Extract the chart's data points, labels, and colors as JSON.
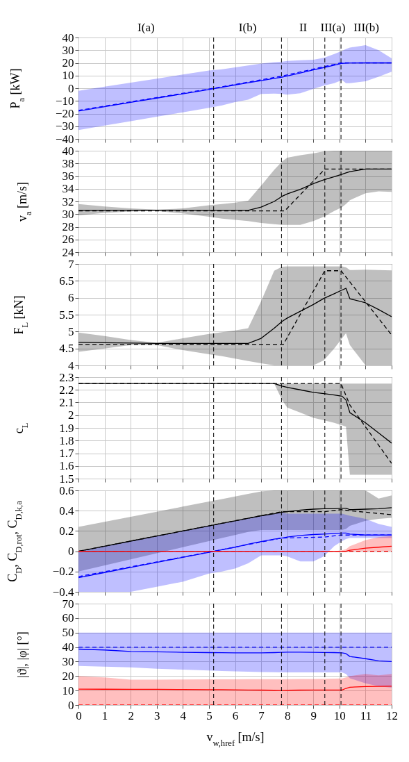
{
  "chart_data": [
    {
      "type": "line",
      "ylabel": "P$_{a}$ [kW]",
      "xlim": [
        0,
        12
      ],
      "xticks": [
        0,
        1,
        2,
        3,
        4,
        5,
        6,
        7,
        8,
        9,
        10,
        11,
        12
      ],
      "ylim": [
        -40,
        40
      ],
      "yticks": [
        -40,
        -30,
        -20,
        -10,
        0,
        10,
        20,
        30,
        40
      ],
      "grid": true,
      "tick_labels": "y",
      "x": [
        0,
        1,
        2,
        3,
        4,
        5,
        5.5,
        6,
        6.5,
        7,
        7.5,
        7.8,
        8,
        8.5,
        9,
        9.4,
        9.8,
        10.1,
        10.25,
        10.4,
        11,
        11.5,
        12
      ],
      "annotations": [
        "I(a)",
        "I(b)",
        "II",
        "III(a)",
        "III(b)"
      ],
      "ref_lines": [
        {
          "axis": "x",
          "value": 5.18,
          "line_style": "dashed",
          "color": "#000000"
        },
        {
          "axis": "x",
          "value": 7.78,
          "line_style": "dashed",
          "color": "#000000"
        },
        {
          "axis": "x",
          "value": 9.44,
          "line_style": "dashed",
          "color": "#000000"
        },
        {
          "axis": "x",
          "value": 10.06,
          "line_style": "dashed",
          "color": "#000000"
        }
      ],
      "series": [
        {
          "color": "#0000ff",
          "line_style": "solid",
          "values": [
            -18,
            -14.6,
            -11.2,
            -7.8,
            -4.4,
            -1,
            0.8,
            2.6,
            4.3,
            6,
            7.7,
            8.7,
            9.7,
            12,
            14.4,
            16.3,
            18.2,
            19.6,
            19.8,
            19.9,
            20,
            20,
            20
          ],
          "upper": [
            -2,
            1.2,
            4.4,
            7.6,
            10.8,
            14,
            15,
            16.5,
            18,
            19.5,
            20.5,
            21,
            21.5,
            22,
            22.5,
            24,
            27,
            29.5,
            31,
            32,
            34,
            30,
            23.5
          ],
          "lower": [
            -33,
            -29.5,
            -26,
            -22.5,
            -19,
            -15.5,
            -13.5,
            -11,
            -9,
            -4.5,
            -4.2,
            -4.5,
            -5,
            -4,
            -0.5,
            2,
            4,
            6.5,
            4,
            4,
            5.5,
            9,
            13
          ]
        },
        {
          "color": "#0000ff",
          "line_style": "dashed",
          "x": [
            0,
            5.18,
            7.78,
            10.06,
            12
          ],
          "values": [
            -17.5,
            0,
            9.5,
            20,
            20
          ]
        }
      ]
    },
    {
      "type": "line",
      "ylabel": "v$_{a}$ [m/s]",
      "xlim": [
        0,
        12
      ],
      "xticks": [
        0,
        1,
        2,
        3,
        4,
        5,
        6,
        7,
        8,
        9,
        10,
        11,
        12
      ],
      "ylim": [
        24,
        40
      ],
      "yticks": [
        24,
        26,
        28,
        30,
        32,
        34,
        36,
        38,
        40
      ],
      "grid": true,
      "tick_labels": "y",
      "x": [
        0,
        1,
        2,
        3,
        4,
        5,
        5.5,
        6,
        6.5,
        7,
        7.5,
        7.8,
        8,
        8.5,
        9,
        9.4,
        9.8,
        10.1,
        10.25,
        10.4,
        11,
        11.5,
        12
      ],
      "ref_lines": [
        {
          "axis": "x",
          "value": 5.18,
          "line_style": "dashed",
          "color": "#000000"
        },
        {
          "axis": "x",
          "value": 7.78,
          "line_style": "dashed",
          "color": "#000000"
        },
        {
          "axis": "x",
          "value": 9.44,
          "line_style": "dashed",
          "color": "#000000"
        },
        {
          "axis": "x",
          "value": 10.06,
          "line_style": "dashed",
          "color": "#000000"
        }
      ],
      "series": [
        {
          "color": "#000000",
          "line_style": "solid",
          "values": [
            30.6,
            30.6,
            30.6,
            30.6,
            30.6,
            30.6,
            30.6,
            30.6,
            30.6,
            31.1,
            32,
            32.8,
            33.2,
            33.9,
            34.8,
            35.4,
            35.9,
            36.3,
            36.5,
            36.7,
            37.1,
            37.1,
            37.1
          ],
          "upper": [
            31.6,
            31.2,
            30.9,
            30.7,
            30.9,
            31.4,
            31.6,
            31.8,
            32.1,
            34.5,
            37,
            38.3,
            38.9,
            39.3,
            39.6,
            39.9,
            40,
            40,
            40,
            40,
            40,
            40,
            40
          ],
          "lower": [
            29.8,
            30.2,
            30.4,
            30.5,
            30.1,
            29.6,
            29.3,
            29.1,
            28.9,
            28.6,
            28.4,
            28.3,
            28.3,
            28.3,
            28.9,
            29.6,
            30.5,
            31.1,
            31.6,
            32.2,
            33.3,
            33.6,
            33.5
          ]
        },
        {
          "color": "#000000",
          "line_style": "dashed",
          "x": [
            0,
            7.9,
            9.44,
            12
          ],
          "values": [
            30.5,
            30.5,
            37.1,
            37.1
          ]
        }
      ]
    },
    {
      "type": "line",
      "ylabel": "F$_{L}$ [kN]",
      "xlim": [
        0,
        12
      ],
      "xticks": [
        0,
        1,
        2,
        3,
        4,
        5,
        6,
        7,
        8,
        9,
        10,
        11,
        12
      ],
      "ylim": [
        4,
        7
      ],
      "yticks": [
        4,
        4.5,
        5,
        5.5,
        6,
        6.5,
        7
      ],
      "grid": true,
      "tick_labels": "y",
      "x": [
        0,
        1,
        2,
        3,
        4,
        5,
        5.5,
        6,
        6.5,
        7,
        7.5,
        7.8,
        8,
        8.5,
        9,
        9.4,
        9.8,
        10.1,
        10.25,
        10.4,
        11,
        11.5,
        12
      ],
      "ref_lines": [
        {
          "axis": "x",
          "value": 5.18,
          "line_style": "dashed",
          "color": "#000000"
        },
        {
          "axis": "x",
          "value": 7.78,
          "line_style": "dashed",
          "color": "#000000"
        },
        {
          "axis": "x",
          "value": 9.44,
          "line_style": "dashed",
          "color": "#000000"
        },
        {
          "axis": "x",
          "value": 10.06,
          "line_style": "dashed",
          "color": "#000000"
        }
      ],
      "series": [
        {
          "color": "#000000",
          "line_style": "solid",
          "values": [
            4.68,
            4.67,
            4.66,
            4.65,
            4.65,
            4.65,
            4.65,
            4.65,
            4.65,
            4.8,
            5.1,
            5.3,
            5.4,
            5.6,
            5.8,
            5.98,
            6.12,
            6.23,
            6.28,
            5.97,
            5.85,
            5.65,
            5.44
          ],
          "upper": [
            4.97,
            4.87,
            4.75,
            4.67,
            4.8,
            4.93,
            4.98,
            5.03,
            5.1,
            5.9,
            6.8,
            6.92,
            6.93,
            6.93,
            6.93,
            6.93,
            6.93,
            6.93,
            6.9,
            6.82,
            6.83,
            6.82,
            6.81
          ],
          "lower": [
            4.4,
            4.5,
            4.6,
            4.6,
            4.45,
            4.33,
            4.27,
            4.2,
            4.13,
            4.06,
            4,
            4,
            4,
            4,
            4,
            4.15,
            4.5,
            4.8,
            4.95,
            4.6,
            4,
            4,
            4
          ]
        },
        {
          "color": "#000000",
          "line_style": "dashed",
          "x": [
            0,
            7.85,
            9.44,
            10.06,
            12
          ],
          "values": [
            4.62,
            4.62,
            6.8,
            6.8,
            4.9
          ]
        }
      ]
    },
    {
      "type": "line",
      "ylabel": "c$_{L}$",
      "xlim": [
        0,
        12
      ],
      "xticks": [
        0,
        1,
        2,
        3,
        4,
        5,
        6,
        7,
        8,
        9,
        10,
        11,
        12
      ],
      "ylim": [
        1.5,
        2.3
      ],
      "yticks": [
        1.5,
        1.6,
        1.7,
        1.8,
        1.9,
        2,
        2.1,
        2.2,
        2.3
      ],
      "grid": true,
      "tick_labels": "y",
      "x": [
        0,
        1,
        2,
        3,
        4,
        5,
        5.5,
        6,
        6.5,
        7,
        7.5,
        7.8,
        8,
        8.5,
        9,
        9.4,
        9.8,
        10.1,
        10.25,
        10.4,
        11,
        11.5,
        12
      ],
      "ref_lines": [
        {
          "axis": "x",
          "value": 5.18,
          "line_style": "dashed",
          "color": "#000000"
        },
        {
          "axis": "x",
          "value": 7.78,
          "line_style": "dashed",
          "color": "#000000"
        },
        {
          "axis": "x",
          "value": 9.44,
          "line_style": "dashed",
          "color": "#000000"
        },
        {
          "axis": "x",
          "value": 10.06,
          "line_style": "dashed",
          "color": "#000000"
        }
      ],
      "series": [
        {
          "color": "#000000",
          "line_style": "solid",
          "values": [
            2.25,
            2.25,
            2.25,
            2.25,
            2.25,
            2.25,
            2.25,
            2.25,
            2.25,
            2.25,
            2.25,
            2.23,
            2.22,
            2.2,
            2.18,
            2.17,
            2.16,
            2.15,
            2.12,
            2.02,
            1.94,
            1.86,
            1.78
          ],
          "upper": [
            2.25,
            2.25,
            2.25,
            2.25,
            2.25,
            2.25,
            2.25,
            2.25,
            2.25,
            2.25,
            2.25,
            2.25,
            2.25,
            2.25,
            2.25,
            2.25,
            2.25,
            2.25,
            2.25,
            2.25,
            2.25,
            2.25,
            2.25
          ],
          "lower": [
            2.25,
            2.25,
            2.25,
            2.25,
            2.25,
            2.25,
            2.25,
            2.25,
            2.25,
            2.25,
            2.25,
            2.12,
            2.06,
            2.02,
            1.98,
            1.96,
            1.94,
            1.92,
            1.91,
            1.53,
            1.53,
            1.53,
            1.53
          ]
        },
        {
          "color": "#000000",
          "line_style": "dashed",
          "x": [
            0,
            10.06,
            10.4,
            12
          ],
          "values": [
            2.25,
            2.25,
            2.08,
            1.62
          ]
        }
      ]
    },
    {
      "type": "line",
      "ylabel": "C$_{D}$, C$_{D,rot}$, C$_{D,k,a}$",
      "xlim": [
        0,
        12
      ],
      "xticks": [
        0,
        1,
        2,
        3,
        4,
        5,
        6,
        7,
        8,
        9,
        10,
        11,
        12
      ],
      "ylim": [
        -0.4,
        0.6
      ],
      "yticks": [
        -0.4,
        -0.2,
        0,
        0.2,
        0.4,
        0.6
      ],
      "grid": true,
      "tick_labels": "y",
      "x": [
        0,
        1,
        2,
        3,
        4,
        5,
        5.5,
        6,
        6.5,
        7,
        7.5,
        7.8,
        8,
        8.5,
        9,
        9.4,
        9.8,
        10.1,
        10.25,
        10.4,
        11,
        11.5,
        12
      ],
      "ref_lines": [
        {
          "axis": "x",
          "value": 5.18,
          "line_style": "dashed",
          "color": "#000000"
        },
        {
          "axis": "x",
          "value": 7.78,
          "line_style": "dashed",
          "color": "#000000"
        },
        {
          "axis": "x",
          "value": 9.44,
          "line_style": "dashed",
          "color": "#000000"
        },
        {
          "axis": "x",
          "value": 10.06,
          "line_style": "dashed",
          "color": "#000000"
        }
      ],
      "series": [
        {
          "color": "#000000",
          "line_style": "solid",
          "values": [
            0,
            0.05,
            0.1,
            0.15,
            0.2,
            0.25,
            0.275,
            0.3,
            0.325,
            0.35,
            0.37,
            0.385,
            0.39,
            0.405,
            0.415,
            0.42,
            0.42,
            0.425,
            0.425,
            0.41,
            0.415,
            0.42,
            0.43
          ],
          "upper": [
            0.24,
            0.29,
            0.34,
            0.39,
            0.44,
            0.49,
            0.515,
            0.54,
            0.565,
            0.59,
            0.6,
            0.6,
            0.6,
            0.6,
            0.6,
            0.6,
            0.6,
            0.6,
            0.6,
            0.6,
            0.6,
            0.52,
            0.55
          ],
          "lower": [
            -0.2,
            -0.14,
            -0.08,
            -0.02,
            0.04,
            0.1,
            0.13,
            0.16,
            0.19,
            0.21,
            0.21,
            0.21,
            0.21,
            0.21,
            0.21,
            0.21,
            0.21,
            0.21,
            0.22,
            0.25,
            0.3,
            0.32,
            0.33
          ]
        },
        {
          "color": "#000000",
          "line_style": "dashed",
          "x": [
            0,
            7.78,
            9.44,
            10.06,
            10.4,
            12
          ],
          "values": [
            0,
            0.39,
            0.39,
            0.41,
            0.4,
            0.36
          ]
        },
        {
          "color": "#0000ff",
          "line_style": "solid",
          "values": [
            -0.26,
            -0.21,
            -0.16,
            -0.11,
            -0.06,
            -0.01,
            0.015,
            0.04,
            0.07,
            0.095,
            0.12,
            0.13,
            0.14,
            0.155,
            0.165,
            0.17,
            0.175,
            0.18,
            0.18,
            0.17,
            0.16,
            0.16,
            0.16
          ],
          "upper": [
            0,
            0.05,
            0.1,
            0.15,
            0.2,
            0.25,
            0.275,
            0.3,
            0.325,
            0.35,
            0.37,
            0.38,
            0.37,
            0.37,
            0.37,
            0.37,
            0.37,
            0.37,
            0.36,
            0.35,
            0.32,
            0.27,
            0.24
          ],
          "lower": [
            -0.4,
            -0.4,
            -0.4,
            -0.35,
            -0.3,
            -0.22,
            -0.2,
            -0.17,
            -0.12,
            -0.04,
            -0.04,
            -0.04,
            -0.05,
            -0.1,
            -0.1,
            -0.05,
            0.05,
            0.1,
            0.12,
            0.13,
            0.13,
            0.13,
            0.13
          ]
        },
        {
          "color": "#0000ff",
          "line_style": "dashed",
          "x": [
            0,
            5.18,
            7.78,
            9.44,
            10.06,
            12
          ],
          "values": [
            -0.25,
            0,
            0.13,
            0.14,
            0.16,
            0.16
          ]
        },
        {
          "color": "#ff0000",
          "line_style": "solid",
          "values": [
            0,
            0,
            0,
            0,
            0,
            0,
            0,
            0,
            0,
            0,
            0,
            0,
            0,
            0,
            0,
            0,
            0,
            0,
            0,
            0.01,
            0.03,
            0.04,
            0.05
          ],
          "upper": [
            0,
            0,
            0,
            0,
            0,
            0,
            0,
            0,
            0,
            0,
            0,
            0,
            0,
            0,
            0,
            0,
            0,
            0.01,
            0.02,
            0.05,
            0.11,
            0.14,
            0.15
          ],
          "lower": [
            0,
            0,
            0,
            0,
            0,
            0,
            0,
            0,
            0,
            0,
            0,
            0,
            0,
            0,
            0,
            0,
            0,
            0,
            0,
            0,
            0,
            0,
            0
          ]
        },
        {
          "color": "#ff0000",
          "line_style": "dashed",
          "x": [
            0,
            12
          ],
          "values": [
            0,
            0
          ]
        }
      ]
    },
    {
      "type": "line",
      "ylabel": "|ϑ|, |φ| [°]",
      "xlabel": "v$_{w,href}$ [m/s]",
      "xlim": [
        0,
        12
      ],
      "xticks": [
        0,
        1,
        2,
        3,
        4,
        5,
        6,
        7,
        8,
        9,
        10,
        11,
        12
      ],
      "ylim": [
        0,
        70
      ],
      "yticks": [
        0,
        10,
        20,
        30,
        40,
        50,
        60,
        70
      ],
      "grid": true,
      "x": [
        0,
        1,
        2,
        3,
        4,
        5,
        5.5,
        6,
        6.5,
        7,
        7.5,
        7.8,
        8,
        8.5,
        9,
        9.4,
        9.8,
        10.1,
        10.25,
        10.4,
        11,
        11.5,
        12
      ],
      "ref_lines": [
        {
          "axis": "x",
          "value": 5.18,
          "line_style": "dashed",
          "color": "#000000"
        },
        {
          "axis": "x",
          "value": 7.78,
          "line_style": "dashed",
          "color": "#000000"
        },
        {
          "axis": "x",
          "value": 9.44,
          "line_style": "dashed",
          "color": "#000000"
        },
        {
          "axis": "x",
          "value": 10.06,
          "line_style": "dashed",
          "color": "#000000"
        }
      ],
      "series": [
        {
          "color": "#0000ff",
          "line_style": "solid",
          "values": [
            38.6,
            38,
            37,
            36.7,
            36.4,
            36.2,
            36.1,
            36,
            36,
            36,
            36.2,
            36.4,
            36.5,
            36.5,
            36.4,
            36.3,
            36.2,
            36,
            35.5,
            33.5,
            32,
            30.5,
            30
          ],
          "upper": [
            50,
            50,
            50,
            50,
            50,
            50,
            50,
            50,
            50,
            50,
            50,
            50,
            50,
            50,
            50,
            50,
            50,
            50,
            50,
            50,
            50,
            50,
            50
          ],
          "lower": [
            27,
            26.5,
            26,
            25,
            24.5,
            23.8,
            23.5,
            23.2,
            23,
            22.8,
            22.6,
            22.5,
            22.5,
            22.5,
            22.5,
            22.5,
            22.5,
            22.5,
            21.5,
            18.5,
            15,
            13,
            12
          ]
        },
        {
          "color": "#0000ff",
          "line_style": "dashed",
          "x": [
            0,
            12
          ],
          "values": [
            40,
            40
          ]
        },
        {
          "color": "#ff0000",
          "line_style": "solid",
          "values": [
            11,
            10.9,
            10.8,
            10.8,
            10.7,
            10.6,
            10.6,
            10.5,
            10.4,
            10.3,
            10.2,
            10.1,
            10.2,
            10.3,
            10.4,
            10.4,
            10.4,
            10.4,
            11.5,
            12.3,
            12.8,
            12.9,
            13
          ],
          "upper": [
            20,
            19,
            17.5,
            17.5,
            17.6,
            17.7,
            17.7,
            17.7,
            17.8,
            17.8,
            17.8,
            17.8,
            17.9,
            18,
            18,
            18.1,
            18.2,
            18.3,
            19,
            20,
            21.5,
            20.5,
            21.5
          ],
          "lower": [
            0,
            0,
            0,
            0,
            0,
            0,
            0,
            0,
            0,
            0,
            0,
            0,
            0,
            0,
            0,
            0,
            0,
            0,
            0,
            0,
            0,
            0,
            0
          ]
        },
        {
          "color": "#ff0000",
          "line_style": "dashed",
          "x": [
            0,
            12
          ],
          "values": [
            0,
            0
          ]
        }
      ]
    }
  ]
}
